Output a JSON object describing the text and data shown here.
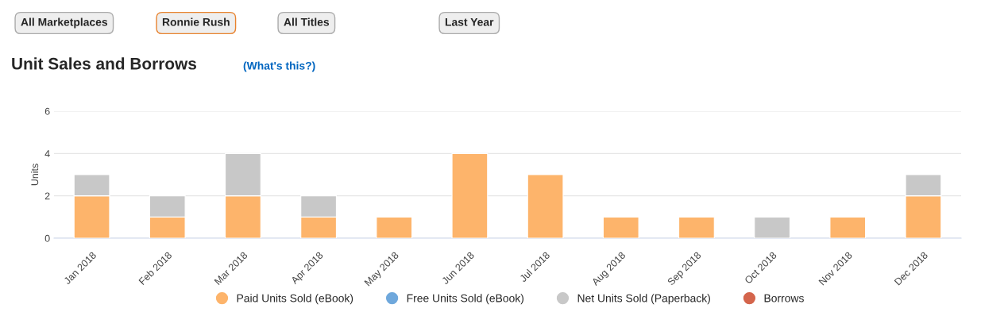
{
  "chart_data": {
    "type": "bar",
    "title": "Unit Sales and Borrows",
    "ylabel": "Units",
    "annotations": [
      "All Marketplaces",
      "Ronnie Rush",
      "All Titles",
      "Last Year",
      "(What's this?)"
    ],
    "categories": [
      "Jan 2018",
      "Feb 2018",
      "Mar 2018",
      "Apr 2018",
      "May 2018",
      "Jun 2018",
      "Jul 2018",
      "Aug 2018",
      "Sep 2018",
      "Oct 2018",
      "Nov 2018",
      "Dec 2018"
    ],
    "stacked": true,
    "series": [
      {
        "name": "Paid Units Sold (eBook)",
        "color": "#fdb46b",
        "values": [
          2,
          1,
          2,
          1,
          1,
          4,
          3,
          1,
          1,
          0,
          1,
          2
        ]
      },
      {
        "name": "Free Units Sold (eBook)",
        "color": "#6fa8dc",
        "values": [
          0,
          0,
          0,
          0,
          0,
          0,
          0,
          0,
          0,
          0,
          0,
          0
        ]
      },
      {
        "name": "Net Units Sold (Paperback)",
        "color": "#c8c8c8",
        "values": [
          1,
          1,
          2,
          1,
          0,
          0,
          0,
          0,
          0,
          1,
          0,
          1
        ]
      },
      {
        "name": "Borrows",
        "color": "#d4654c",
        "values": [
          0,
          0,
          0,
          0,
          0,
          0,
          0,
          0,
          0,
          0,
          0,
          0
        ]
      }
    ],
    "ylim": [
      0,
      6
    ],
    "yticks": [
      0,
      2,
      4,
      6
    ],
    "grid": "y",
    "legend": "bottom"
  }
}
